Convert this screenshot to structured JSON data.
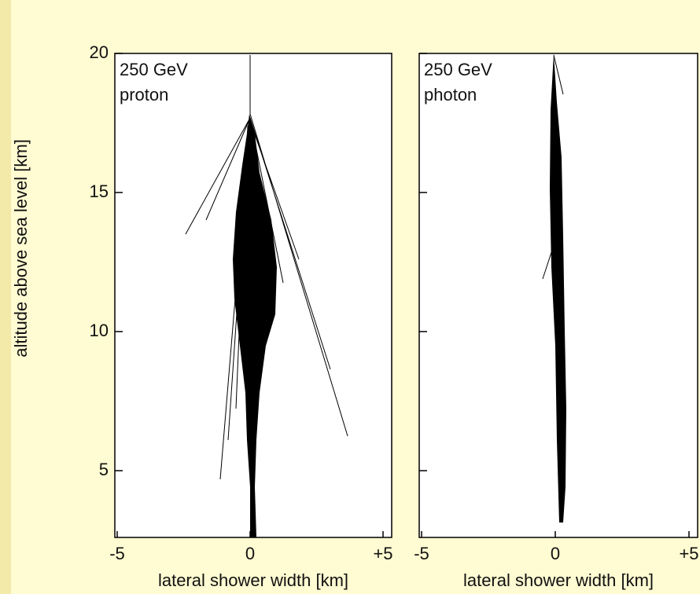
{
  "chart_data": [
    {
      "type": "shower",
      "annotation": [
        "250 GeV",
        "proton"
      ],
      "y_label": "altitude above sea level [km]",
      "x_label": "lateral shower width [km]",
      "xlim": [
        -5,
        5
      ],
      "xticks": [
        -5,
        0,
        {
          "value": 5,
          "label": "+5"
        }
      ],
      "ylim": [
        2.6,
        20
      ],
      "yticks": [
        5,
        10,
        15,
        20
      ],
      "ytick_labels": true
    },
    {
      "type": "shower",
      "annotation": [
        "250 GeV",
        "photon"
      ],
      "x_label": "lateral shower width [km]",
      "xlim": [
        -5,
        5
      ],
      "xticks": [
        -5,
        0,
        {
          "value": 5,
          "label": "+5"
        }
      ],
      "ylim": [
        2.6,
        20
      ],
      "yticks": [
        5,
        10,
        15,
        20
      ],
      "ytick_labels": false
    }
  ]
}
